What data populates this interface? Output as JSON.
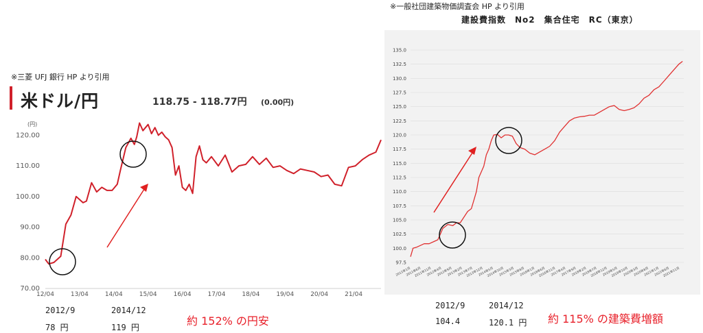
{
  "left_panel": {
    "source_note": "※三菱 UFJ 銀行 HP より引用",
    "title": "米ドル/円",
    "rate": "118.75 - 118.77円",
    "change": "(0.00円)",
    "notes": [
      {
        "label": "2012/9",
        "value": "78 円"
      },
      {
        "label": "2014/12",
        "value": "119 円"
      }
    ],
    "result": "約 152% の円安",
    "colors": {
      "line": "#d0202a",
      "accent_bar": "#d0202a",
      "arrow": "#e02020",
      "result": "#e8202a"
    }
  },
  "right_panel": {
    "source_note": "※一般社団建築物価調査会 HP より引用",
    "title": "建設費指数　No2　集合住宅　RC（東京）",
    "notes": [
      {
        "label": "2012/9",
        "value": "104.4"
      },
      {
        "label": "2014/12",
        "value": "120.1 円"
      }
    ],
    "result": "約 115% の建築費増額",
    "colors": {
      "line": "#e03030",
      "background": "#f2f2f2",
      "arrow": "#e02020",
      "result": "#e8202a"
    }
  },
  "chart_data": [
    {
      "type": "line",
      "unit_label": "(円)",
      "x_tick_labels": [
        "12/04",
        "13/04",
        "14/04",
        "15/04",
        "16/04",
        "17/04",
        "18/04",
        "19/04",
        "20/04",
        "21/04"
      ],
      "y_tick_labels": [
        "70.00",
        "80.00",
        "90.00",
        "100.00",
        "110.00",
        "120.00"
      ],
      "ylim": [
        70,
        125
      ],
      "xlim": [
        2012.25,
        2022.05
      ],
      "grid": false,
      "series": [
        {
          "x": [
            2012.25,
            2012.35,
            2012.5,
            2012.7,
            2012.85,
            2013.0,
            2013.15,
            2013.35,
            2013.45,
            2013.6,
            2013.75,
            2013.9,
            2014.05,
            2014.2,
            2014.35,
            2014.45,
            2014.6,
            2014.75,
            2014.85,
            2014.92,
            2015.0,
            2015.1,
            2015.25,
            2015.35,
            2015.45,
            2015.55,
            2015.65,
            2015.75,
            2015.85,
            2015.95,
            2016.05,
            2016.15,
            2016.25,
            2016.35,
            2016.45,
            2016.55,
            2016.65,
            2016.75,
            2016.85,
            2016.95,
            2017.1,
            2017.3,
            2017.5,
            2017.7,
            2017.9,
            2018.1,
            2018.3,
            2018.5,
            2018.7,
            2018.9,
            2019.1,
            2019.3,
            2019.5,
            2019.7,
            2019.9,
            2020.1,
            2020.3,
            2020.5,
            2020.7,
            2020.9,
            2021.1,
            2021.3,
            2021.5,
            2021.7,
            2021.9,
            2022.05
          ],
          "y": [
            79.5,
            78,
            78.5,
            80.5,
            91,
            94,
            100,
            98,
            98.5,
            104.5,
            101.5,
            103,
            102,
            102,
            104,
            109,
            116,
            119,
            117,
            119.5,
            124,
            121.5,
            123.5,
            120.5,
            122.5,
            120,
            121,
            119.5,
            118.5,
            116,
            107,
            110,
            103,
            102,
            104,
            101,
            113,
            116.5,
            112,
            111,
            113,
            110,
            113.5,
            108,
            110,
            110.5,
            113,
            110.5,
            112.5,
            109.5,
            110,
            108.5,
            107.5,
            109,
            108.5,
            108,
            106.5,
            107,
            104,
            103.5,
            109.5,
            110,
            112,
            113.5,
            114.5,
            118.5
          ]
        }
      ]
    },
    {
      "type": "line",
      "y_tick_labels": [
        "97.5",
        "100.0",
        "102.5",
        "105.0",
        "107.5",
        "110.0",
        "112.5",
        "115.0",
        "117.5",
        "120.0",
        "122.5",
        "125.0",
        "127.5",
        "130.0",
        "132.5",
        "135.0"
      ],
      "x_tick_labels": [
        "2011年1月",
        "2011年6月",
        "2011年11月",
        "2012年4月",
        "2012年9月",
        "2013年2月",
        "2013年7月",
        "2013年12月",
        "2014年5月",
        "2014年10月",
        "2015年3月",
        "2015年8月",
        "2016年1月",
        "2016年6月",
        "2016年11月",
        "2017年4月",
        "2017年9月",
        "2018年2月",
        "2018年7月",
        "2018年12月",
        "2019年5月",
        "2019年10月",
        "2020年3月",
        "2020年8月",
        "2021年1月",
        "2021年6月",
        "2021年11月"
      ],
      "ylim": [
        97.5,
        135
      ],
      "xlim": [
        2011.0,
        2022.0
      ],
      "grid": true,
      "series": [
        {
          "x": [
            2011.0,
            2011.1,
            2011.25,
            2011.4,
            2011.55,
            2011.75,
            2011.95,
            2012.1,
            2012.3,
            2012.5,
            2012.7,
            2012.85,
            2013.0,
            2013.15,
            2013.3,
            2013.45,
            2013.55,
            2013.65,
            2013.75,
            2013.85,
            2013.95,
            2014.05,
            2014.15,
            2014.25,
            2014.35,
            2014.5,
            2014.65,
            2014.8,
            2014.95,
            2015.1,
            2015.25,
            2015.4,
            2015.6,
            2015.8,
            2016.0,
            2016.2,
            2016.4,
            2016.6,
            2016.8,
            2017.0,
            2017.2,
            2017.4,
            2017.6,
            2017.8,
            2018.0,
            2018.2,
            2018.4,
            2018.6,
            2018.8,
            2019.0,
            2019.2,
            2019.4,
            2019.6,
            2019.8,
            2020.0,
            2020.2,
            2020.4,
            2020.6,
            2020.8,
            2021.0,
            2021.2,
            2021.4,
            2021.6,
            2021.8,
            2021.95
          ],
          "y": [
            98.5,
            100,
            100.2,
            100.5,
            100.8,
            100.8,
            101.2,
            101.5,
            103.5,
            104.2,
            104.0,
            104.5,
            104.5,
            105.5,
            106.5,
            107.0,
            108.5,
            110.0,
            112.5,
            113.5,
            114.5,
            116.5,
            117.5,
            119.0,
            120.0,
            120.1,
            119.5,
            120.0,
            120.0,
            119.8,
            118.5,
            117.8,
            117.5,
            116.8,
            116.5,
            117.0,
            117.5,
            118.0,
            119.0,
            120.5,
            121.5,
            122.5,
            123.0,
            123.2,
            123.3,
            123.5,
            123.5,
            124.0,
            124.5,
            125.0,
            125.2,
            124.5,
            124.3,
            124.5,
            124.8,
            125.5,
            126.5,
            127.0,
            128.0,
            128.5,
            129.5,
            130.5,
            131.5,
            132.5,
            133.0
          ]
        }
      ]
    }
  ]
}
